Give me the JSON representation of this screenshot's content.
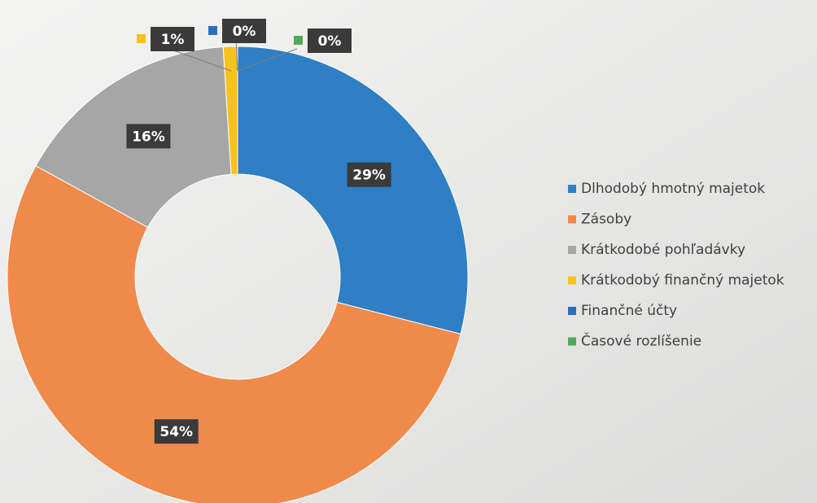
{
  "chart_data": {
    "type": "donut",
    "categories": [
      "Dlhodobý hmotný majetok",
      "Zásoby",
      "Krátkodobé pohľadávky",
      "Krátkodobý finančný majetok",
      "Finančné účty",
      "Časové rozlíšenie"
    ],
    "values": [
      29,
      54,
      16,
      1,
      0,
      0
    ],
    "value_labels": [
      "29%",
      "54%",
      "16%",
      "1%",
      "0%",
      "0%"
    ],
    "colors": [
      "#2e7fc4",
      "#f08a4b",
      "#a6a6a6",
      "#f7c21c",
      "#2a6fbf",
      "#4faa55"
    ],
    "legend": "right"
  }
}
